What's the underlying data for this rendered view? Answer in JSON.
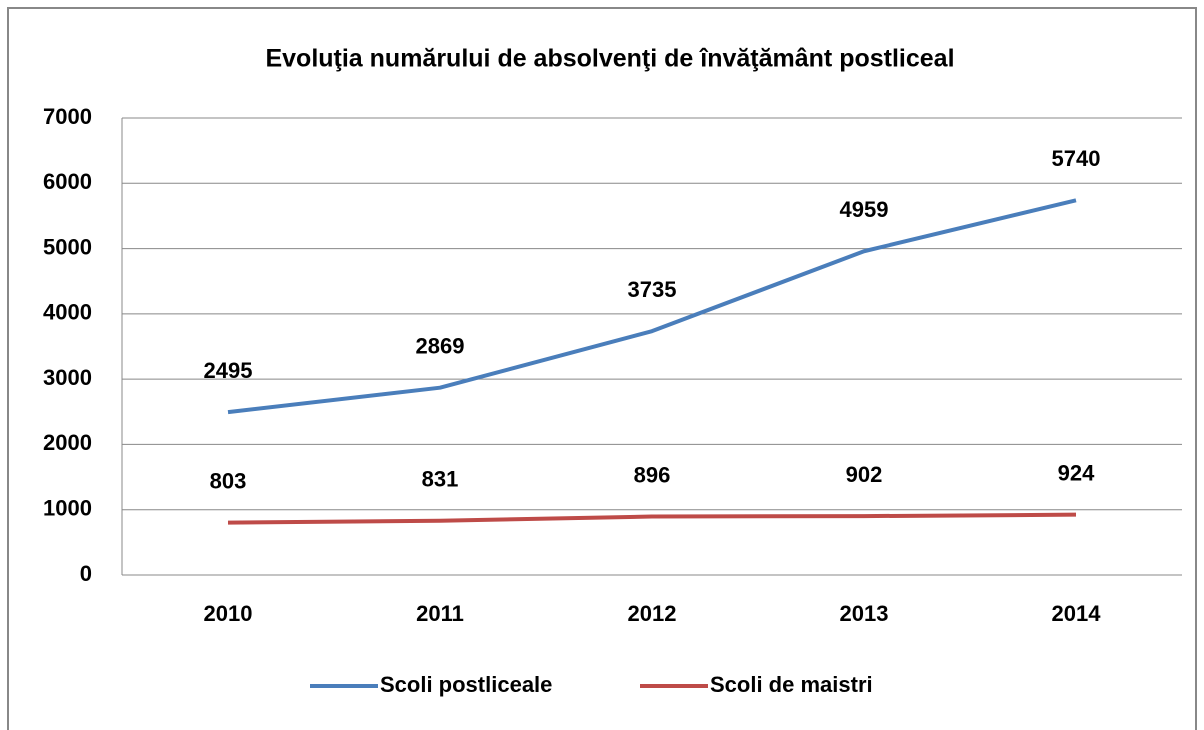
{
  "chart_data": {
    "type": "line",
    "title": "Evoluţia numărului de absolvenţi de învăţământ postliceal",
    "categories": [
      "2010",
      "2011",
      "2012",
      "2013",
      "2014"
    ],
    "series": [
      {
        "name": "Scoli postliceale",
        "color": "#4a7ebb",
        "values": [
          2495,
          2869,
          3735,
          4959,
          5740
        ]
      },
      {
        "name": "Scoli de maistri",
        "color": "#be4b48",
        "values": [
          803,
          831,
          896,
          902,
          924
        ]
      }
    ],
    "ylim": [
      0,
      7000
    ],
    "yticks": [
      0,
      1000,
      2000,
      3000,
      4000,
      5000,
      6000,
      7000
    ],
    "grid": true,
    "legend": "bottom"
  }
}
